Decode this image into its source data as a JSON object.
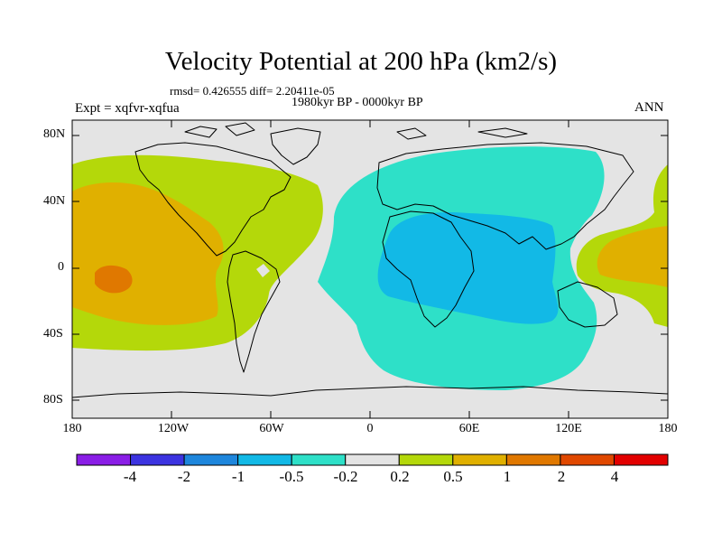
{
  "title": "Velocity Potential at 200 hPa (km2/s)",
  "stats": "rmsd= 0.426555 diff= 2.20411e-05",
  "period": "1980kyr BP - 0000kyr BP",
  "experiment": "Expt = xqfvr-xqfua",
  "season": "ANN",
  "lat_labels": [
    "80N",
    "40N",
    "0",
    "40S",
    "80S"
  ],
  "lon_labels": [
    "180",
    "120W",
    "60W",
    "0",
    "60E",
    "120E",
    "180"
  ],
  "colorbar": {
    "labels": [
      "-4",
      "-2",
      "-1",
      "-0.5",
      "-0.2",
      "0.2",
      "0.5",
      "1",
      "2",
      "4"
    ],
    "colors": [
      "#8a1ee6",
      "#3c33e0",
      "#1e86dc",
      "#12b9e6",
      "#2ee0c8",
      "#e4e4e4",
      "#b4d80a",
      "#e0b000",
      "#e07800",
      "#e04800",
      "#e20000"
    ]
  },
  "field_colors": {
    "neutral": "#e4e4e4",
    "pos_0_2": "#b4d80a",
    "pos_0_5": "#e0b000",
    "pos_1": "#e07800",
    "neg_0_2": "#2ee0c8",
    "neg_0_5": "#12b9e6"
  }
}
